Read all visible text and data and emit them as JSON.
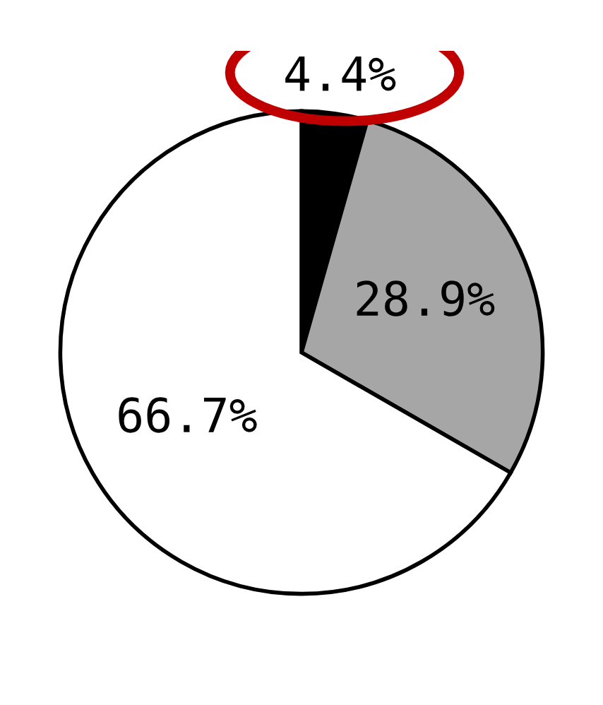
{
  "chart_data": {
    "type": "pie",
    "categories": [
      null,
      null,
      null
    ],
    "values": [
      4.4,
      28.9,
      66.7
    ],
    "colors": [
      "#000000",
      "#a6a6a6",
      "#ffffff"
    ],
    "value_labels": [
      "4.4%",
      "28.9%",
      "66.7%"
    ]
  }
}
